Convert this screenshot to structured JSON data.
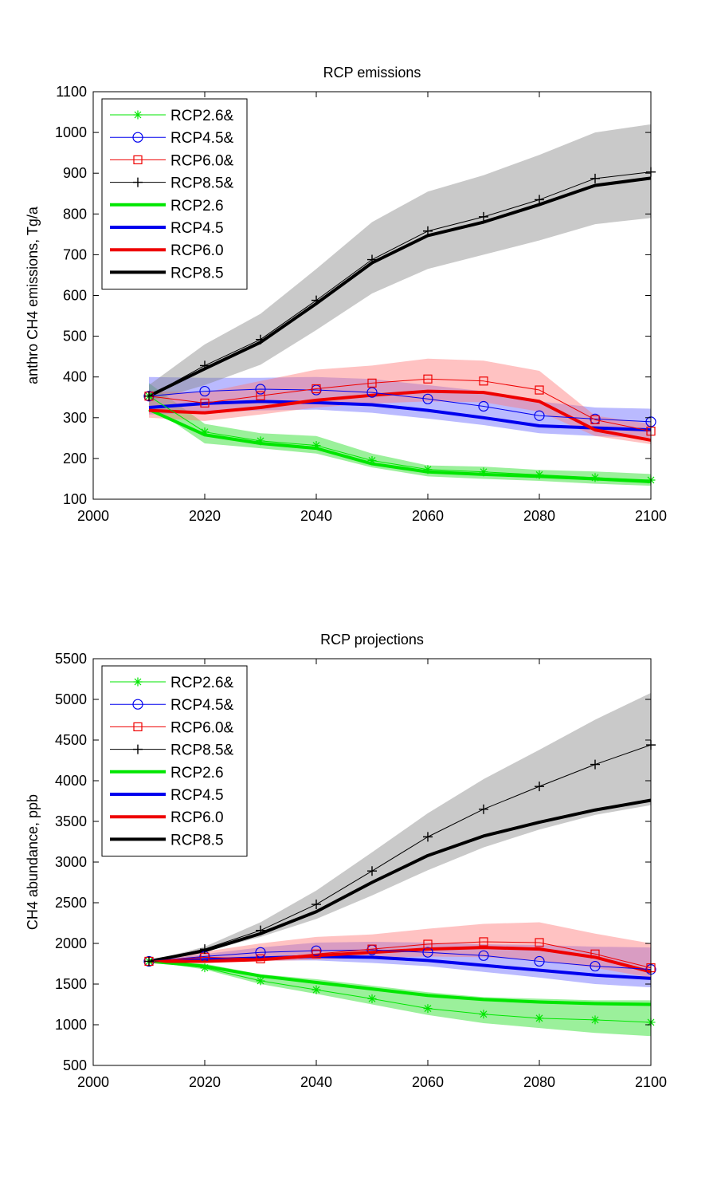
{
  "chart_data": [
    {
      "type": "line",
      "title": "RCP emissions",
      "xlabel": "",
      "ylabel": "anthro CH4 emissions, Tg/a",
      "xlim": [
        2000,
        2100
      ],
      "ylim": [
        100,
        1100
      ],
      "xticks": [
        2000,
        2020,
        2040,
        2060,
        2080,
        2100
      ],
      "yticks": [
        100,
        200,
        300,
        400,
        500,
        600,
        700,
        800,
        900,
        1000,
        1100
      ],
      "legend_position": "top-left",
      "x": [
        2010,
        2020,
        2030,
        2040,
        2050,
        2060,
        2070,
        2080,
        2090,
        2100
      ],
      "bands": [
        {
          "series": "RCP2.6",
          "color": "#22dd22",
          "lower": [
            330,
            237,
            225,
            212,
            178,
            156,
            150,
            145,
            138,
            133
          ],
          "upper": [
            385,
            285,
            262,
            255,
            212,
            183,
            180,
            172,
            168,
            162
          ]
        },
        {
          "series": "RCP4.5",
          "color": "#6666ff",
          "lower": [
            308,
            312,
            318,
            320,
            312,
            298,
            282,
            262,
            255,
            250
          ],
          "upper": [
            400,
            398,
            398,
            400,
            395,
            380,
            365,
            340,
            325,
            322
          ]
        },
        {
          "series": "RCP6.0",
          "color": "#ff7777",
          "lower": [
            300,
            292,
            308,
            325,
            335,
            340,
            338,
            315,
            255,
            235
          ],
          "upper": [
            365,
            362,
            390,
            418,
            428,
            445,
            440,
            415,
            305,
            285
          ]
        },
        {
          "series": "RCP8.5",
          "color": "#888888",
          "lower": [
            340,
            380,
            430,
            515,
            605,
            665,
            700,
            735,
            775,
            790
          ],
          "upper": [
            380,
            480,
            555,
            665,
            780,
            855,
            895,
            945,
            1000,
            1020
          ]
        }
      ],
      "series": [
        {
          "name": "RCP2.6&",
          "style": "thin",
          "marker": "star",
          "color": "#00e600",
          "values": [
            353,
            265,
            243,
            232,
            195,
            173,
            167,
            160,
            153,
            147
          ]
        },
        {
          "name": "RCP4.5&",
          "style": "thin",
          "marker": "circle",
          "color": "#0000ee",
          "values": [
            353,
            365,
            370,
            368,
            362,
            346,
            328,
            305,
            297,
            290
          ]
        },
        {
          "name": "RCP6.0&",
          "style": "thin",
          "marker": "square",
          "color": "#ee0000",
          "values": [
            353,
            336,
            354,
            371,
            385,
            395,
            390,
            368,
            295,
            267
          ]
        },
        {
          "name": "RCP8.5&",
          "style": "thin",
          "marker": "plus",
          "color": "#000000",
          "values": [
            353,
            428,
            492,
            588,
            688,
            758,
            793,
            835,
            887,
            903
          ]
        },
        {
          "name": "RCP2.6",
          "style": "thick",
          "marker": "none",
          "color": "#00e600",
          "values": [
            320,
            258,
            237,
            225,
            187,
            167,
            161,
            156,
            150,
            143
          ]
        },
        {
          "name": "RCP4.5",
          "style": "thick",
          "marker": "none",
          "color": "#0000ee",
          "values": [
            325,
            335,
            340,
            337,
            332,
            318,
            300,
            280,
            275,
            270
          ]
        },
        {
          "name": "RCP6.0",
          "style": "thick",
          "marker": "none",
          "color": "#ee0000",
          "values": [
            318,
            312,
            325,
            343,
            355,
            365,
            362,
            340,
            270,
            245
          ]
        },
        {
          "name": "RCP8.5",
          "style": "thick",
          "marker": "none",
          "color": "#000000",
          "values": [
            353,
            420,
            485,
            580,
            680,
            747,
            780,
            823,
            870,
            888
          ]
        }
      ]
    },
    {
      "type": "line",
      "title": "RCP projections",
      "xlabel": "",
      "ylabel": "CH4 abundance, ppb",
      "xlim": [
        2000,
        2100
      ],
      "ylim": [
        500,
        5500
      ],
      "xticks": [
        2000,
        2020,
        2040,
        2060,
        2080,
        2100
      ],
      "yticks": [
        500,
        1000,
        1500,
        2000,
        2500,
        3000,
        3500,
        4000,
        4500,
        5000,
        5500
      ],
      "legend_position": "top-left",
      "x": [
        2010,
        2020,
        2030,
        2040,
        2050,
        2060,
        2070,
        2080,
        2090,
        2100
      ],
      "bands": [
        {
          "series": "RCP2.6",
          "color": "#22dd22",
          "lower": [
            1780,
            1680,
            1500,
            1380,
            1250,
            1120,
            1020,
            960,
            900,
            860
          ],
          "upper": [
            1780,
            1750,
            1620,
            1560,
            1480,
            1400,
            1340,
            1320,
            1300,
            1300
          ]
        },
        {
          "series": "RCP4.5",
          "color": "#6666ff",
          "lower": [
            1780,
            1790,
            1790,
            1790,
            1760,
            1720,
            1650,
            1580,
            1500,
            1460
          ],
          "upper": [
            1780,
            1870,
            1950,
            2010,
            2020,
            2010,
            1990,
            1980,
            1960,
            1950
          ]
        },
        {
          "series": "RCP6.0",
          "color": "#ff7777",
          "lower": [
            1780,
            1780,
            1780,
            1800,
            1820,
            1840,
            1830,
            1790,
            1700,
            1580
          ],
          "upper": [
            1780,
            1900,
            2000,
            2080,
            2110,
            2180,
            2240,
            2260,
            2120,
            2000
          ]
        },
        {
          "series": "RCP8.5",
          "color": "#888888",
          "lower": [
            1780,
            1900,
            2080,
            2300,
            2590,
            2900,
            3180,
            3400,
            3580,
            3700
          ],
          "upper": [
            1780,
            1960,
            2260,
            2650,
            3120,
            3600,
            4020,
            4380,
            4750,
            5080
          ]
        }
      ],
      "series": [
        {
          "name": "RCP2.6&",
          "style": "thin",
          "marker": "star",
          "color": "#00e600",
          "values": [
            1780,
            1700,
            1540,
            1430,
            1320,
            1200,
            1130,
            1080,
            1060,
            1030
          ]
        },
        {
          "name": "RCP4.5&",
          "style": "thin",
          "marker": "circle",
          "color": "#0000ee",
          "values": [
            1780,
            1840,
            1890,
            1910,
            1920,
            1890,
            1850,
            1780,
            1720,
            1680
          ]
        },
        {
          "name": "RCP6.0&",
          "style": "thin",
          "marker": "square",
          "color": "#ee0000",
          "values": [
            1780,
            1830,
            1810,
            1870,
            1930,
            1990,
            2020,
            2010,
            1870,
            1700
          ]
        },
        {
          "name": "RCP8.5&",
          "style": "thin",
          "marker": "plus",
          "color": "#000000",
          "values": [
            1780,
            1930,
            2160,
            2480,
            2890,
            3310,
            3650,
            3930,
            4200,
            4440
          ]
        },
        {
          "name": "RCP2.6",
          "style": "thick",
          "marker": "none",
          "color": "#00e600",
          "values": [
            1780,
            1720,
            1600,
            1520,
            1440,
            1360,
            1310,
            1280,
            1260,
            1250
          ]
        },
        {
          "name": "RCP4.5",
          "style": "thick",
          "marker": "none",
          "color": "#0000ee",
          "values": [
            1780,
            1800,
            1820,
            1840,
            1830,
            1790,
            1730,
            1670,
            1610,
            1570
          ]
        },
        {
          "name": "RCP6.0",
          "style": "thick",
          "marker": "none",
          "color": "#ee0000",
          "values": [
            1780,
            1780,
            1800,
            1850,
            1890,
            1930,
            1950,
            1930,
            1830,
            1650
          ]
        },
        {
          "name": "RCP8.5",
          "style": "thick",
          "marker": "none",
          "color": "#000000",
          "values": [
            1780,
            1910,
            2120,
            2390,
            2750,
            3080,
            3320,
            3490,
            3640,
            3760
          ]
        }
      ]
    }
  ]
}
